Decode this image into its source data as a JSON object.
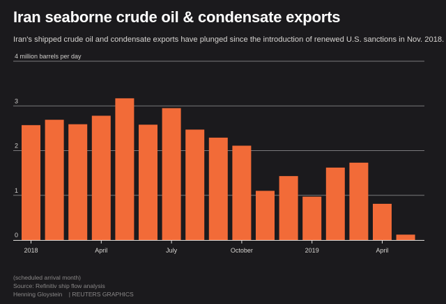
{
  "chart_data": {
    "type": "bar",
    "title": "Iran seaborne crude oil & condensate exports",
    "subtitle": "Iran's shipped crude oil and condensate exports have plunged since the introduction of renewed U.S. sanctions in Nov. 2018.",
    "ylabel": "4 million barrels per day",
    "ylim": [
      0,
      4
    ],
    "yticks": [
      "0",
      "1",
      "2",
      "3"
    ],
    "grid": true,
    "x_tick_labels": [
      {
        "index": 0,
        "label": "2018"
      },
      {
        "index": 3,
        "label": "April"
      },
      {
        "index": 6,
        "label": "July"
      },
      {
        "index": 9,
        "label": "October"
      },
      {
        "index": 12,
        "label": "2019"
      },
      {
        "index": 15,
        "label": "April"
      }
    ],
    "categories": [
      "Jan 2018",
      "Feb 2018",
      "Mar 2018",
      "Apr 2018",
      "May 2018",
      "Jun 2018",
      "Jul 2018",
      "Aug 2018",
      "Sep 2018",
      "Oct 2018",
      "Nov 2018",
      "Dec 2018",
      "Jan 2019",
      "Feb 2019",
      "Mar 2019",
      "Apr 2019",
      "May 2019"
    ],
    "values": [
      2.57,
      2.69,
      2.59,
      2.78,
      3.17,
      2.58,
      2.95,
      2.47,
      2.29,
      2.11,
      1.1,
      1.43,
      0.97,
      1.62,
      1.73,
      0.81,
      0.12
    ],
    "bar_color": "#f26b38"
  },
  "footer": {
    "note": "(scheduled arrival month)",
    "source": "Source: Refinitiv ship flow analysis",
    "credit": "Henning Gloystein",
    "brand": "REUTERS GRAPHICS"
  }
}
